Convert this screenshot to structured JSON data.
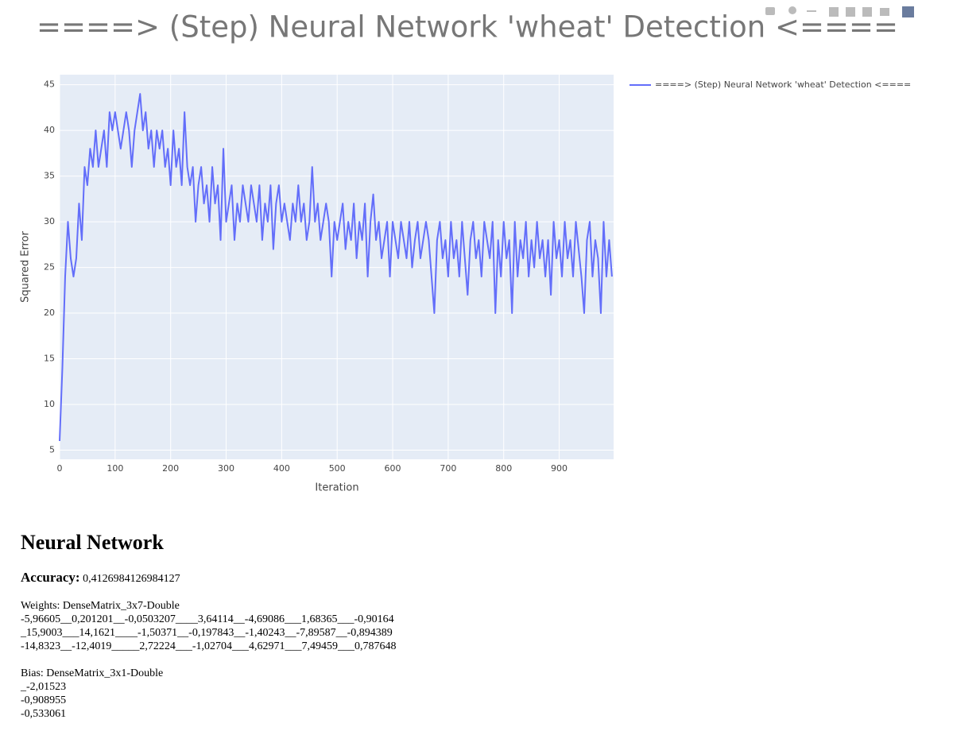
{
  "chart_data": {
    "type": "line",
    "title": "====> (Step) Neural Network 'wheat' Detection <====",
    "x_label": "Iteration",
    "y_label": "Squared Error",
    "xlim": [
      0,
      998
    ],
    "ylim": [
      4,
      46.1
    ],
    "xticks": [
      0,
      100,
      200,
      300,
      400,
      500,
      600,
      700,
      800,
      900
    ],
    "yticks": [
      5,
      10,
      15,
      20,
      25,
      30,
      35,
      40,
      45
    ],
    "grid": true,
    "legend": "right",
    "x": [
      0,
      5,
      10,
      15,
      20,
      25,
      30,
      35,
      40,
      45,
      50,
      55,
      60,
      65,
      70,
      75,
      80,
      85,
      90,
      95,
      100,
      105,
      110,
      115,
      120,
      125,
      130,
      135,
      140,
      145,
      150,
      155,
      160,
      165,
      170,
      175,
      180,
      185,
      190,
      195,
      200,
      205,
      210,
      215,
      220,
      225,
      230,
      235,
      240,
      245,
      250,
      255,
      260,
      265,
      270,
      275,
      280,
      285,
      290,
      295,
      300,
      305,
      310,
      315,
      320,
      325,
      330,
      335,
      340,
      345,
      350,
      355,
      360,
      365,
      370,
      375,
      380,
      385,
      390,
      395,
      400,
      405,
      410,
      415,
      420,
      425,
      430,
      435,
      440,
      445,
      450,
      455,
      460,
      465,
      470,
      475,
      480,
      485,
      490,
      495,
      500,
      505,
      510,
      515,
      520,
      525,
      530,
      535,
      540,
      545,
      550,
      555,
      560,
      565,
      570,
      575,
      580,
      585,
      590,
      595,
      600,
      605,
      610,
      615,
      620,
      625,
      630,
      635,
      640,
      645,
      650,
      655,
      660,
      665,
      670,
      675,
      680,
      685,
      690,
      695,
      700,
      705,
      710,
      715,
      720,
      725,
      730,
      735,
      740,
      745,
      750,
      755,
      760,
      765,
      770,
      775,
      780,
      785,
      790,
      795,
      800,
      805,
      810,
      815,
      820,
      825,
      830,
      835,
      840,
      845,
      850,
      855,
      860,
      865,
      870,
      875,
      880,
      885,
      890,
      895,
      900,
      905,
      910,
      915,
      920,
      925,
      930,
      935,
      940,
      945,
      950,
      955,
      960,
      965,
      970,
      975,
      980,
      985,
      990,
      995
    ],
    "series": [
      {
        "name": "====> (Step) Neural Network 'wheat' Detection <====",
        "color": "#636efa",
        "values": [
          6,
          14,
          24,
          30,
          26,
          24,
          26,
          32,
          28,
          36,
          34,
          38,
          36,
          40,
          36,
          38,
          40,
          36,
          42,
          40,
          42,
          40,
          38,
          40,
          42,
          40,
          36,
          40,
          42,
          44,
          40,
          42,
          38,
          40,
          36,
          40,
          38,
          40,
          36,
          38,
          34,
          40,
          36,
          38,
          34,
          42,
          36,
          34,
          36,
          30,
          34,
          36,
          32,
          34,
          30,
          36,
          32,
          34,
          28,
          38,
          30,
          32,
          34,
          28,
          32,
          30,
          34,
          32,
          30,
          34,
          32,
          30,
          34,
          28,
          32,
          30,
          34,
          27,
          32,
          34,
          30,
          32,
          30,
          28,
          32,
          30,
          34,
          30,
          32,
          28,
          30,
          36,
          30,
          32,
          28,
          30,
          32,
          30,
          24,
          30,
          28,
          30,
          32,
          27,
          30,
          28,
          32,
          26,
          30,
          28,
          32,
          24,
          30,
          33,
          28,
          30,
          26,
          28,
          30,
          24,
          30,
          28,
          26,
          30,
          28,
          26,
          30,
          25,
          28,
          30,
          26,
          28,
          30,
          28,
          24,
          20,
          28,
          30,
          26,
          28,
          24,
          30,
          26,
          28,
          24,
          30,
          26,
          22,
          28,
          30,
          26,
          28,
          24,
          30,
          28,
          26,
          30,
          20,
          28,
          24,
          30,
          26,
          28,
          20,
          30,
          24,
          28,
          26,
          30,
          24,
          28,
          25,
          30,
          26,
          28,
          24,
          28,
          22,
          30,
          26,
          28,
          24,
          30,
          26,
          28,
          24,
          30,
          27,
          24,
          20,
          28,
          30,
          24,
          28,
          26,
          20,
          30,
          24,
          28,
          24
        ]
      }
    ]
  },
  "document": {
    "heading": "Neural Network",
    "accuracy_label": "Accuracy:",
    "accuracy_value": "0,4126984126984127",
    "weights_title": "Weights: DenseMatrix_3x7-Double",
    "weights_rows": [
      "-5,96605__0,201201__-0,0503207____3,64114__-4,69086___1,68365___-0,90164",
      "_15,9003___14,1621____-1,50371__-0,197843__-1,40243__-7,89587__-0,894389",
      "-14,8323__-12,4019_____2,72224___-1,02704___4,62971___7,49459___0,787648"
    ],
    "bias_title": "Bias: DenseMatrix_3x1-Double",
    "bias_rows": [
      "_-2,01523",
      "-0,908955",
      "-0,533061"
    ]
  }
}
